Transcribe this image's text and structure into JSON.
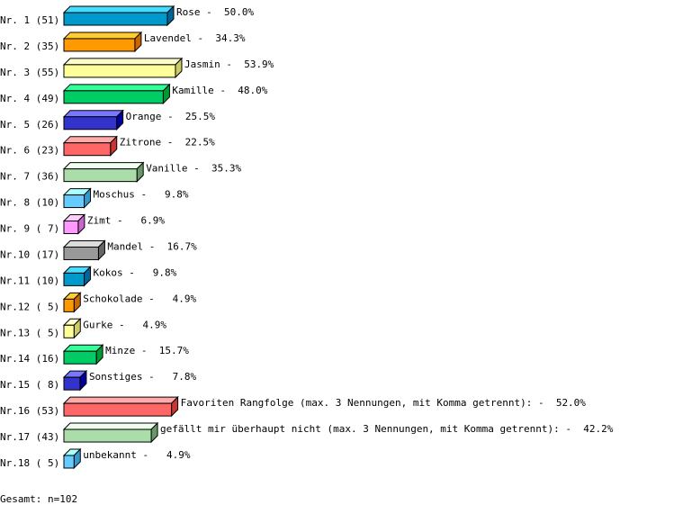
{
  "chart_data": {
    "type": "bar",
    "orientation": "horizontal",
    "style": "3d",
    "grid": false,
    "unit": "%",
    "categories": [
      "Rose",
      "Lavendel",
      "Jasmin",
      "Kamille",
      "Orange",
      "Zitrone",
      "Vanille",
      "Moschus",
      "Zimt",
      "Mandel",
      "Kokos",
      "Schokolade",
      "Gurke",
      "Minze",
      "Sonstiges",
      "Favoriten Rangfolge (max. 3 Nennungen, mit Komma getrennt):",
      "gefällt mir überhaupt nicht (max. 3 Nennungen, mit Komma getrennt):",
      "unbekannt"
    ],
    "row_labels": [
      "Nr. 1 (51)",
      "Nr. 2 (35)",
      "Nr. 3 (55)",
      "Nr. 4 (49)",
      "Nr. 5 (26)",
      "Nr. 6 (23)",
      "Nr. 7 (36)",
      "Nr. 8 (10)",
      "Nr. 9 ( 7)",
      "Nr.10 (17)",
      "Nr.11 (10)",
      "Nr.12 ( 5)",
      "Nr.13 ( 5)",
      "Nr.14 (16)",
      "Nr.15 ( 8)",
      "Nr.16 (53)",
      "Nr.17 (43)",
      "Nr.18 ( 5)"
    ],
    "counts": [
      51,
      35,
      55,
      49,
      26,
      23,
      36,
      10,
      7,
      17,
      10,
      5,
      5,
      16,
      8,
      53,
      43,
      5
    ],
    "values": [
      50.0,
      34.3,
      53.9,
      48.0,
      25.5,
      22.5,
      35.3,
      9.8,
      6.9,
      16.7,
      9.8,
      4.9,
      4.9,
      15.7,
      7.8,
      52.0,
      42.2,
      4.9
    ],
    "value_labels": [
      "Rose -  50.0%",
      "Lavendel -  34.3%",
      "Jasmin -  53.9%",
      "Kamille -  48.0%",
      "Orange -  25.5%",
      "Zitrone -  22.5%",
      "Vanille -  35.3%",
      "Moschus -   9.8%",
      "Zimt -   6.9%",
      "Mandel -  16.7%",
      "Kokos -   9.8%",
      "Schokolade -   4.9%",
      "Gurke -   4.9%",
      "Minze -  15.7%",
      "Sonstiges -   7.8%",
      "Favoriten Rangfolge (max. 3 Nennungen, mit Komma getrennt): -  52.0%",
      "gefällt mir überhaupt nicht (max. 3 Nennungen, mit Komma getrennt): -  42.2%",
      "unbekannt -   4.9%"
    ],
    "palette": [
      {
        "front": "#0099cc",
        "top": "#44ddff",
        "side": "#006699"
      },
      {
        "front": "#ff9900",
        "top": "#ffcc33",
        "side": "#cc6600"
      },
      {
        "front": "#ffff99",
        "top": "#ffffcc",
        "side": "#cccc66"
      },
      {
        "front": "#00cc66",
        "top": "#33ff99",
        "side": "#009933"
      },
      {
        "front": "#3333cc",
        "top": "#7777ff",
        "side": "#000099"
      },
      {
        "front": "#ff6666",
        "top": "#ffaaaa",
        "side": "#cc3333"
      },
      {
        "front": "#aaddaa",
        "top": "#eeffee",
        "side": "#669966"
      },
      {
        "front": "#66ccff",
        "top": "#aaffff",
        "side": "#3399cc"
      },
      {
        "front": "#ff99ff",
        "top": "#ffccff",
        "side": "#cc66cc"
      },
      {
        "front": "#999999",
        "top": "#dddddd",
        "side": "#666666"
      }
    ],
    "color_index": [
      0,
      1,
      2,
      3,
      4,
      5,
      6,
      7,
      8,
      9,
      0,
      1,
      2,
      3,
      4,
      5,
      6,
      7
    ],
    "footer": "Gesamt: n=102"
  }
}
